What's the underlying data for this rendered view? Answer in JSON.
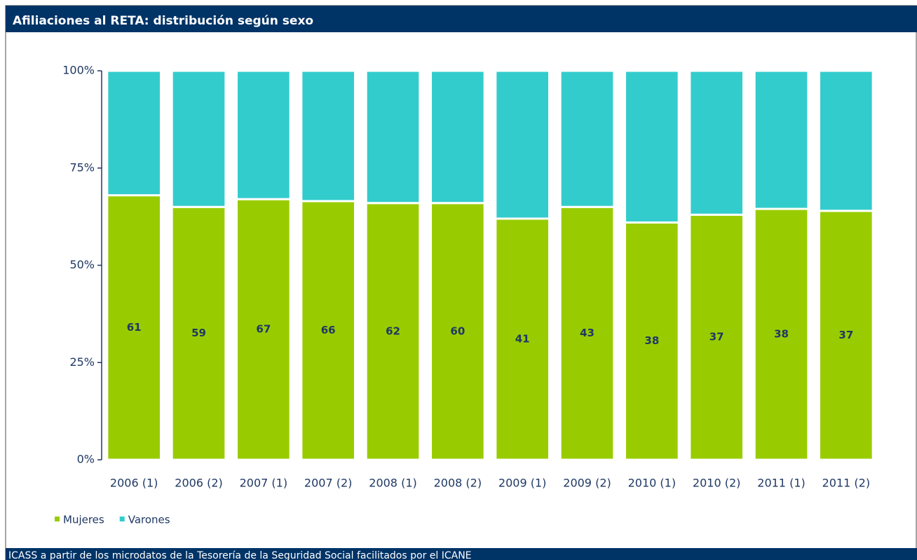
{
  "chart_data": {
    "type": "stacked_bar",
    "title": "Afiliaciones al RETA: distribución según sexo",
    "source": "ICASS a partir de los microdatos de la Tesorería de la Seguridad Social facilitados por el ICANE",
    "categories": [
      "2006 (1)",
      "2006 (2)",
      "2007 (1)",
      "2007 (2)",
      "2008 (1)",
      "2008 (2)",
      "2009 (1)",
      "2009 (2)",
      "2010 (1)",
      "2010 (2)",
      "2011 (1)",
      "2011 (2)"
    ],
    "series": [
      {
        "name": "Mujeres",
        "color": "#99cc00",
        "values": [
          68,
          65,
          67,
          66.5,
          66,
          66,
          62,
          65,
          61,
          63,
          64.5,
          64
        ]
      },
      {
        "name": "Varones",
        "color": "#33cccc",
        "values": [
          32,
          35,
          33,
          33.5,
          34,
          34,
          38,
          35,
          39,
          37,
          35.5,
          36
        ]
      }
    ],
    "bar_labels": [
      "61",
      "59",
      "67",
      "66",
      "62",
      "60",
      "41",
      "43",
      "38",
      "37",
      "38",
      "37"
    ],
    "ylim": [
      0,
      100
    ],
    "yticks": [
      {
        "value": 0,
        "label": "0%"
      },
      {
        "value": 25,
        "label": "25%"
      },
      {
        "value": 50,
        "label": "50%"
      },
      {
        "value": 75,
        "label": "75%"
      },
      {
        "value": 100,
        "label": "100%"
      }
    ],
    "grid": false,
    "legend": "bottom-left"
  }
}
